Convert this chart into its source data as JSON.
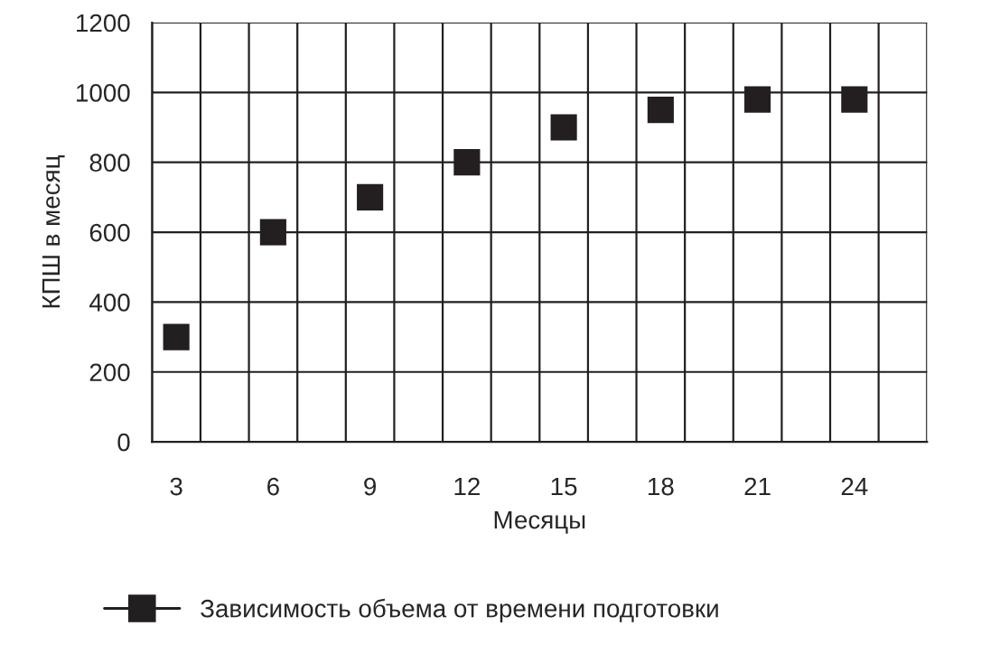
{
  "chart_data": {
    "type": "scatter",
    "xlabel": "Месяцы",
    "ylabel": "КПШ в месяц",
    "categories": [
      "3",
      null,
      "6",
      null,
      "9",
      null,
      "12",
      null,
      "15",
      null,
      "18",
      null,
      "21",
      null,
      "24",
      null
    ],
    "series": [
      {
        "name": "Зависимость объема от времени подготовки",
        "color": "#231f20",
        "values": [
          300,
          null,
          600,
          null,
          700,
          null,
          800,
          null,
          900,
          null,
          950,
          null,
          980,
          null,
          980,
          null
        ]
      }
    ],
    "ylim": [
      0,
      1200
    ],
    "yticks": [
      0,
      200,
      400,
      600,
      800,
      1000,
      1200
    ],
    "grid": true,
    "legend": "bottom",
    "marker": "square"
  }
}
